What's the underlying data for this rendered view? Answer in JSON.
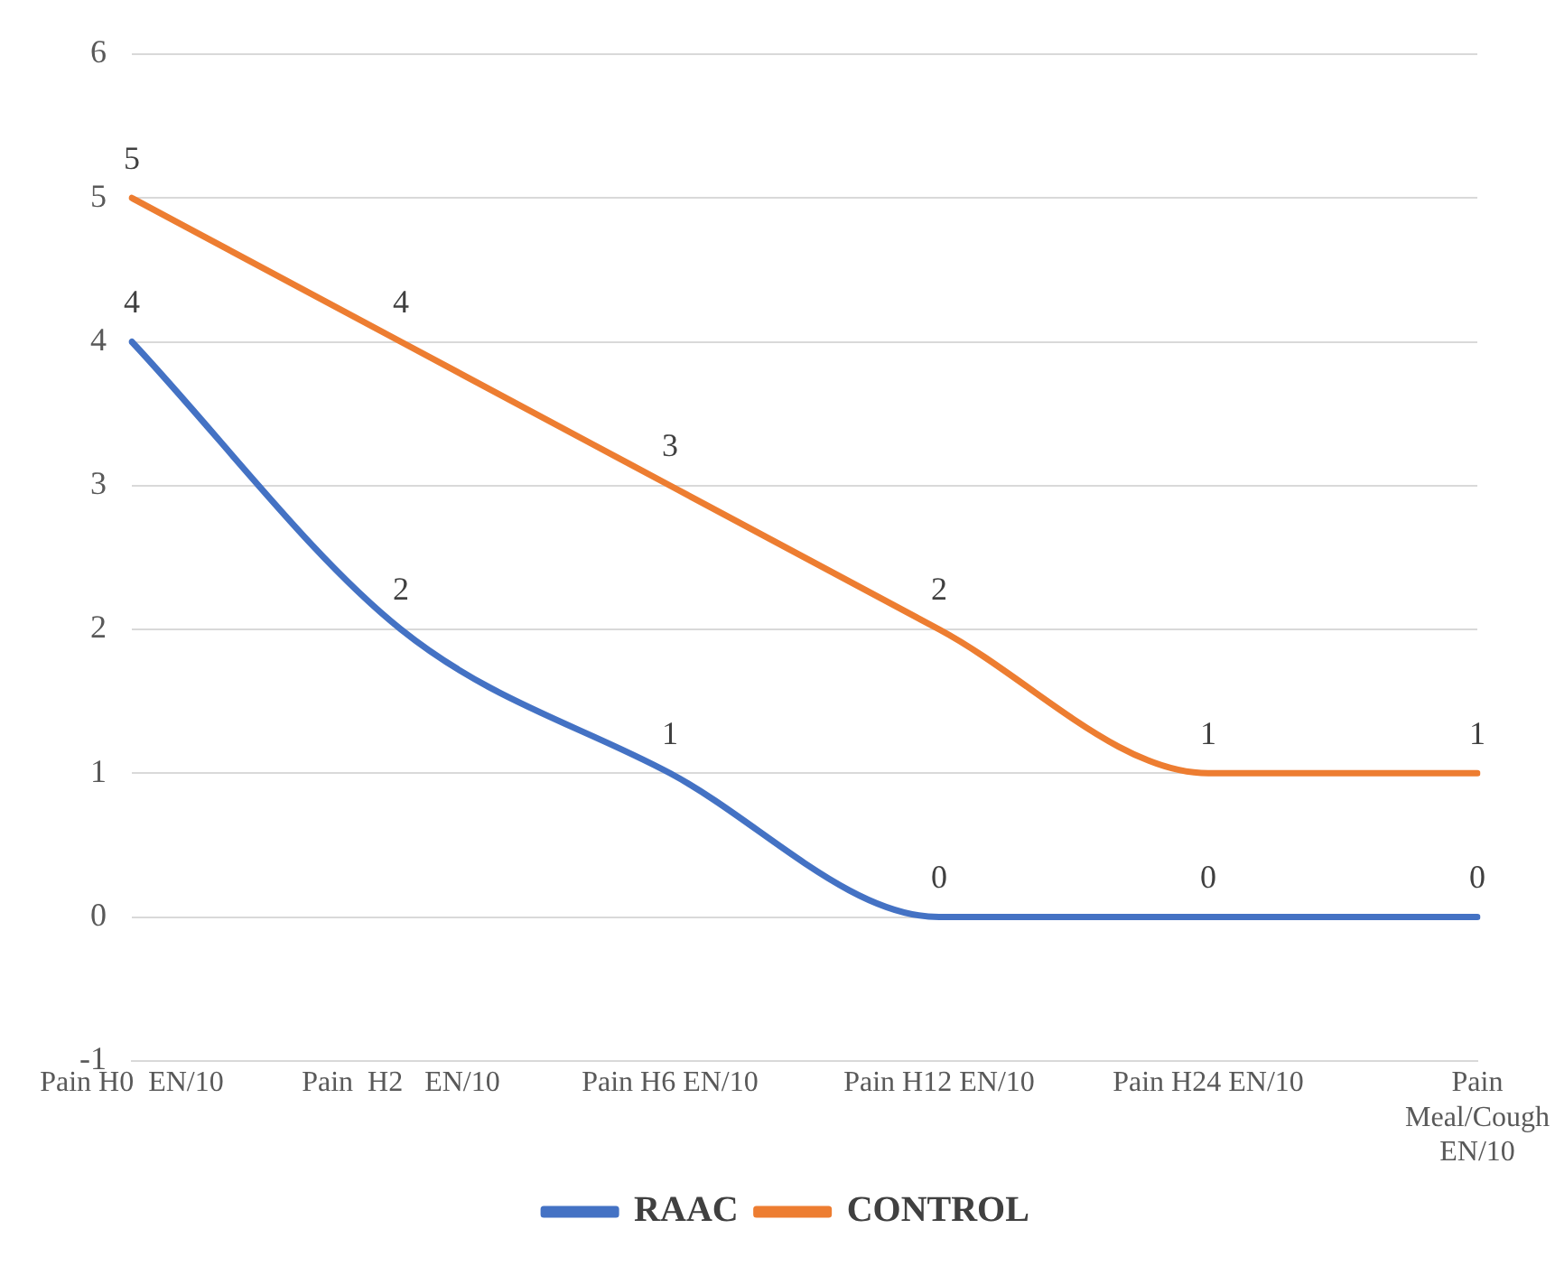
{
  "chart_data": {
    "type": "line",
    "categories": [
      "Pain H0  EN/10",
      "Pain  H2   EN/10",
      "Pain H6 EN/10",
      "Pain H12 EN/10",
      "Pain H24 EN/10",
      "Pain Meal/Cough EN/10"
    ],
    "series": [
      {
        "name": "RAAC",
        "color": "#4472c4",
        "values": [
          4,
          2,
          1,
          0,
          0,
          0
        ]
      },
      {
        "name": "CONTROL",
        "color": "#ed7d31",
        "values": [
          5,
          4,
          3,
          2,
          1,
          1
        ]
      }
    ],
    "ylim": [
      -1,
      6
    ],
    "yticks": [
      -1,
      0,
      1,
      2,
      3,
      4,
      5,
      6
    ],
    "grid": "y",
    "legend": "bottom",
    "marker": "none",
    "line_style": "solid",
    "data_labels": true
  }
}
